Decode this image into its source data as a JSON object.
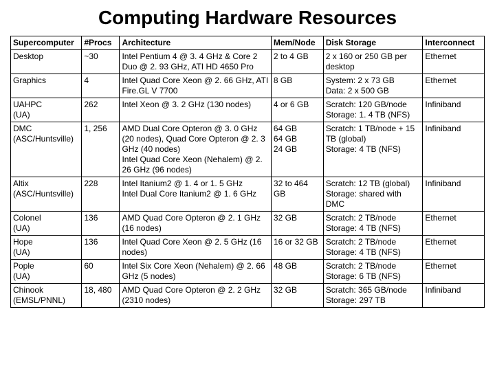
{
  "title": "Computing Hardware Resources",
  "table": {
    "columns": [
      "Supercomputer",
      "#Procs",
      "Architecture",
      "Mem/Node",
      "Disk Storage",
      "Interconnect"
    ],
    "rows": [
      {
        "name": "Desktop",
        "name_sub": "",
        "procs": "~30",
        "arch": "Intel Pentium 4 @ 3. 4 GHz & Core 2 Duo @ 2. 93 GHz, ATI HD 4650 Pro",
        "mem": "2 to 4 GB",
        "disk": "2 x 160 or 250 GB per desktop",
        "disk_sub": "",
        "inter": "Ethernet"
      },
      {
        "name": "Graphics",
        "name_sub": "",
        "procs": "4",
        "arch": "Intel Quad Core Xeon @ 2. 66 GHz, ATI Fire.GL V 7700",
        "mem": "8 GB",
        "disk": "System: 2 x 73 GB",
        "disk_sub": "Data: 2 x 500 GB",
        "inter": "Ethernet"
      },
      {
        "name": "UAHPC",
        "name_sub": "(UA)",
        "procs": "262",
        "arch": "Intel Xeon @ 3. 2 GHz (130 nodes)",
        "mem": "4 or 6 GB",
        "disk": "Scratch: 120 GB/node",
        "disk_sub": "Storage: 1. 4 TB (NFS)",
        "inter": "Infiniband"
      },
      {
        "name": "DMC",
        "name_sub": "(ASC/Huntsville)",
        "procs": "1, 256",
        "arch": "AMD Dual Core Opteron @ 3. 0 GHz (20 nodes), Quad Core Opteron @ 2. 3 GHz (40 nodes)",
        "arch_sub": "Intel Quad Core Xeon (Nehalem) @ 2. 26 GHz (96 nodes)",
        "mem": "64 GB",
        "mem_sub": "64 GB",
        "mem_sub2": "24 GB",
        "disk": "Scratch: 1 TB/node + 15 TB (global)",
        "disk_sub": "Storage: 4 TB (NFS)",
        "inter": "Infiniband"
      },
      {
        "name": "Altix",
        "name_sub": "(ASC/Huntsville)",
        "procs": "228",
        "arch": "Intel Itanium2 @ 1. 4 or 1. 5 GHz",
        "arch_sub": "Intel Dual Core Itanium2 @ 1. 6 GHz",
        "mem": "32 to 464 GB",
        "disk": "Scratch: 12 TB (global)",
        "disk_sub": "Storage: shared with DMC",
        "inter": "Infiniband"
      },
      {
        "name": "Colonel",
        "name_sub": "(UA)",
        "procs": "136",
        "arch": "AMD Quad Core Opteron @ 2. 1 GHz (16 nodes)",
        "mem": "32 GB",
        "disk": "Scratch: 2 TB/node",
        "disk_sub": "Storage: 4 TB (NFS)",
        "inter": "Ethernet"
      },
      {
        "name": "Hope",
        "name_sub": "(UA)",
        "procs": "136",
        "arch": "Intel Quad Core Xeon @ 2. 5 GHz (16 nodes)",
        "mem": "16 or 32 GB",
        "disk": "Scratch: 2 TB/node",
        "disk_sub": "Storage: 4 TB (NFS)",
        "inter": "Ethernet"
      },
      {
        "name": "Pople",
        "name_sub": "(UA)",
        "procs": "60",
        "arch": "Intel Six Core Xeon (Nehalem) @ 2. 66 GHz (5 nodes)",
        "mem": "48 GB",
        "disk": "Scratch: 2 TB/node",
        "disk_sub": "Storage: 6 TB (NFS)",
        "inter": "Ethernet"
      },
      {
        "name": "Chinook",
        "name_sub": "(EMSL/PNNL)",
        "procs": "18, 480",
        "arch": "AMD Quad Core Opteron @ 2. 2 GHz (2310 nodes)",
        "mem": "32 GB",
        "disk": "Scratch: 365 GB/node",
        "disk_sub": "Storage: 297 TB",
        "inter": "Infiniband"
      }
    ]
  }
}
